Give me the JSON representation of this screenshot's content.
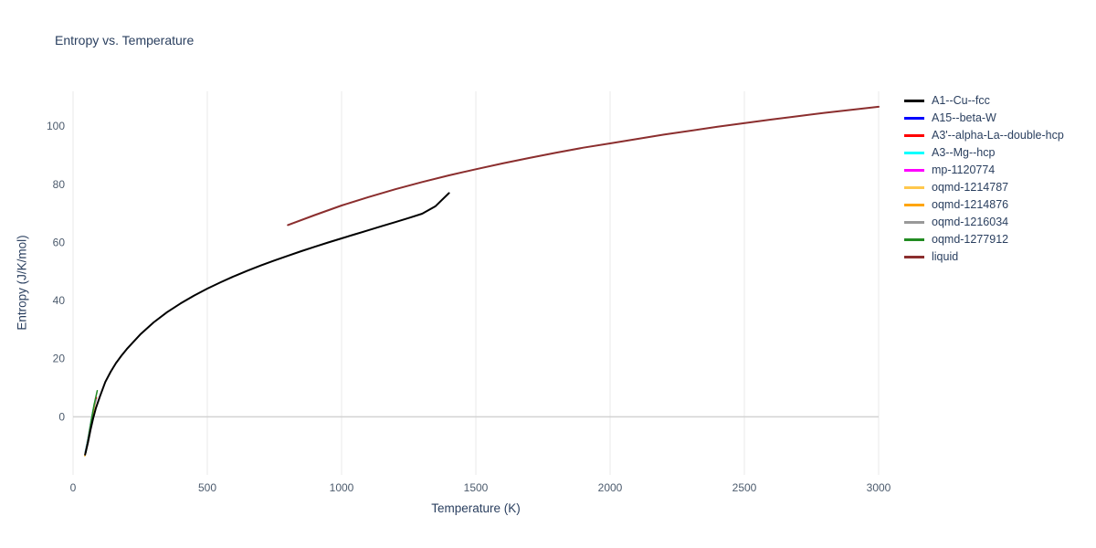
{
  "chart_data": {
    "type": "line",
    "title": "Entropy vs. Temperature",
    "xlabel": "Temperature (K)",
    "ylabel": "Entropy (J/K/mol)",
    "xlim": [
      0,
      3000
    ],
    "ylim": [
      -20,
      112
    ],
    "xticks": [
      0,
      500,
      1000,
      1500,
      2000,
      2500,
      3000
    ],
    "yticks": [
      0,
      20,
      40,
      60,
      80,
      100
    ],
    "grid": {
      "vertical": true,
      "horizontal": false,
      "zeroline": true
    },
    "legend_position": "right-outside",
    "draw_order": [
      1,
      2,
      3,
      4,
      5,
      6,
      7,
      8,
      0,
      9
    ],
    "series": [
      {
        "name": "A1--Cu--fcc",
        "color": "#000000",
        "width": 2,
        "x": [
          45,
          55,
          65,
          75,
          85,
          100,
          120,
          140,
          160,
          180,
          200,
          250,
          300,
          350,
          400,
          450,
          500,
          550,
          600,
          650,
          700,
          750,
          800,
          850,
          900,
          950,
          1000,
          1050,
          1100,
          1150,
          1200,
          1250,
          1300,
          1350,
          1400
        ],
        "y": [
          -13,
          -9,
          -4.5,
          -0.5,
          3,
          7,
          12,
          15.5,
          18.5,
          21,
          23.3,
          28.3,
          32.5,
          36,
          39,
          41.7,
          44.1,
          46.3,
          48.4,
          50.3,
          52.1,
          53.8,
          55.4,
          57,
          58.5,
          60,
          61.4,
          62.8,
          64.2,
          65.6,
          67,
          68.4,
          69.9,
          72.5,
          77
        ]
      },
      {
        "name": "A15--beta-W",
        "color": "#0000ff",
        "width": 1.5,
        "x": [
          45,
          55,
          65,
          75,
          85
        ],
        "y": [
          -12.6,
          -7.8,
          -2.6,
          2.2,
          5.8
        ]
      },
      {
        "name": "A3'--alpha-La--double-hcp",
        "color": "#ff0000",
        "width": 1.5,
        "x": [
          45,
          55,
          65,
          75,
          87
        ],
        "y": [
          -12.9,
          -8.1,
          -2.9,
          2.0,
          6.6
        ]
      },
      {
        "name": "A3--Mg--hcp",
        "color": "#00ffff",
        "width": 1.5,
        "x": [
          45,
          55,
          65,
          75,
          85
        ],
        "y": [
          -12.3,
          -7.5,
          -2.3,
          2.4,
          6.0
        ]
      },
      {
        "name": "mp-1120774",
        "color": "#ff00ff",
        "width": 1.5,
        "x": [
          45,
          55,
          65,
          75,
          85
        ],
        "y": [
          -12.7,
          -7.9,
          -2.7,
          2.1,
          5.9
        ]
      },
      {
        "name": "oqmd-1214787",
        "color": "#ffc84d",
        "width": 1.5,
        "x": [
          44,
          54,
          64,
          74,
          83
        ],
        "y": [
          -13.2,
          -8.4,
          -3.2,
          1.6,
          5.2
        ]
      },
      {
        "name": "oqmd-1214876",
        "color": "#ffa500",
        "width": 1.5,
        "x": [
          44,
          54,
          64,
          74,
          83
        ],
        "y": [
          -13.4,
          -8.6,
          -3.4,
          1.4,
          5.0
        ]
      },
      {
        "name": "oqmd-1216034",
        "color": "#999999",
        "width": 1.5,
        "x": [
          45,
          55,
          65,
          75,
          85
        ],
        "y": [
          -12.5,
          -7.7,
          -2.5,
          2.3,
          5.9
        ]
      },
      {
        "name": "oqmd-1277912",
        "color": "#228b22",
        "width": 1.5,
        "x": [
          48,
          58,
          68,
          78,
          90
        ],
        "y": [
          -12.2,
          -6.8,
          -1.2,
          4.0,
          9.0
        ]
      },
      {
        "name": "liquid",
        "color": "#8b2e2e",
        "width": 2,
        "x": [
          800,
          900,
          1000,
          1100,
          1200,
          1300,
          1400,
          1500,
          1600,
          1700,
          1800,
          1900,
          2000,
          2200,
          2400,
          2600,
          2800,
          3000
        ],
        "y": [
          66,
          69.4,
          72.7,
          75.6,
          78.3,
          80.8,
          83.1,
          85.2,
          87.2,
          89.1,
          90.9,
          92.6,
          94.1,
          97.1,
          99.8,
          102.3,
          104.6,
          106.7
        ]
      }
    ]
  }
}
